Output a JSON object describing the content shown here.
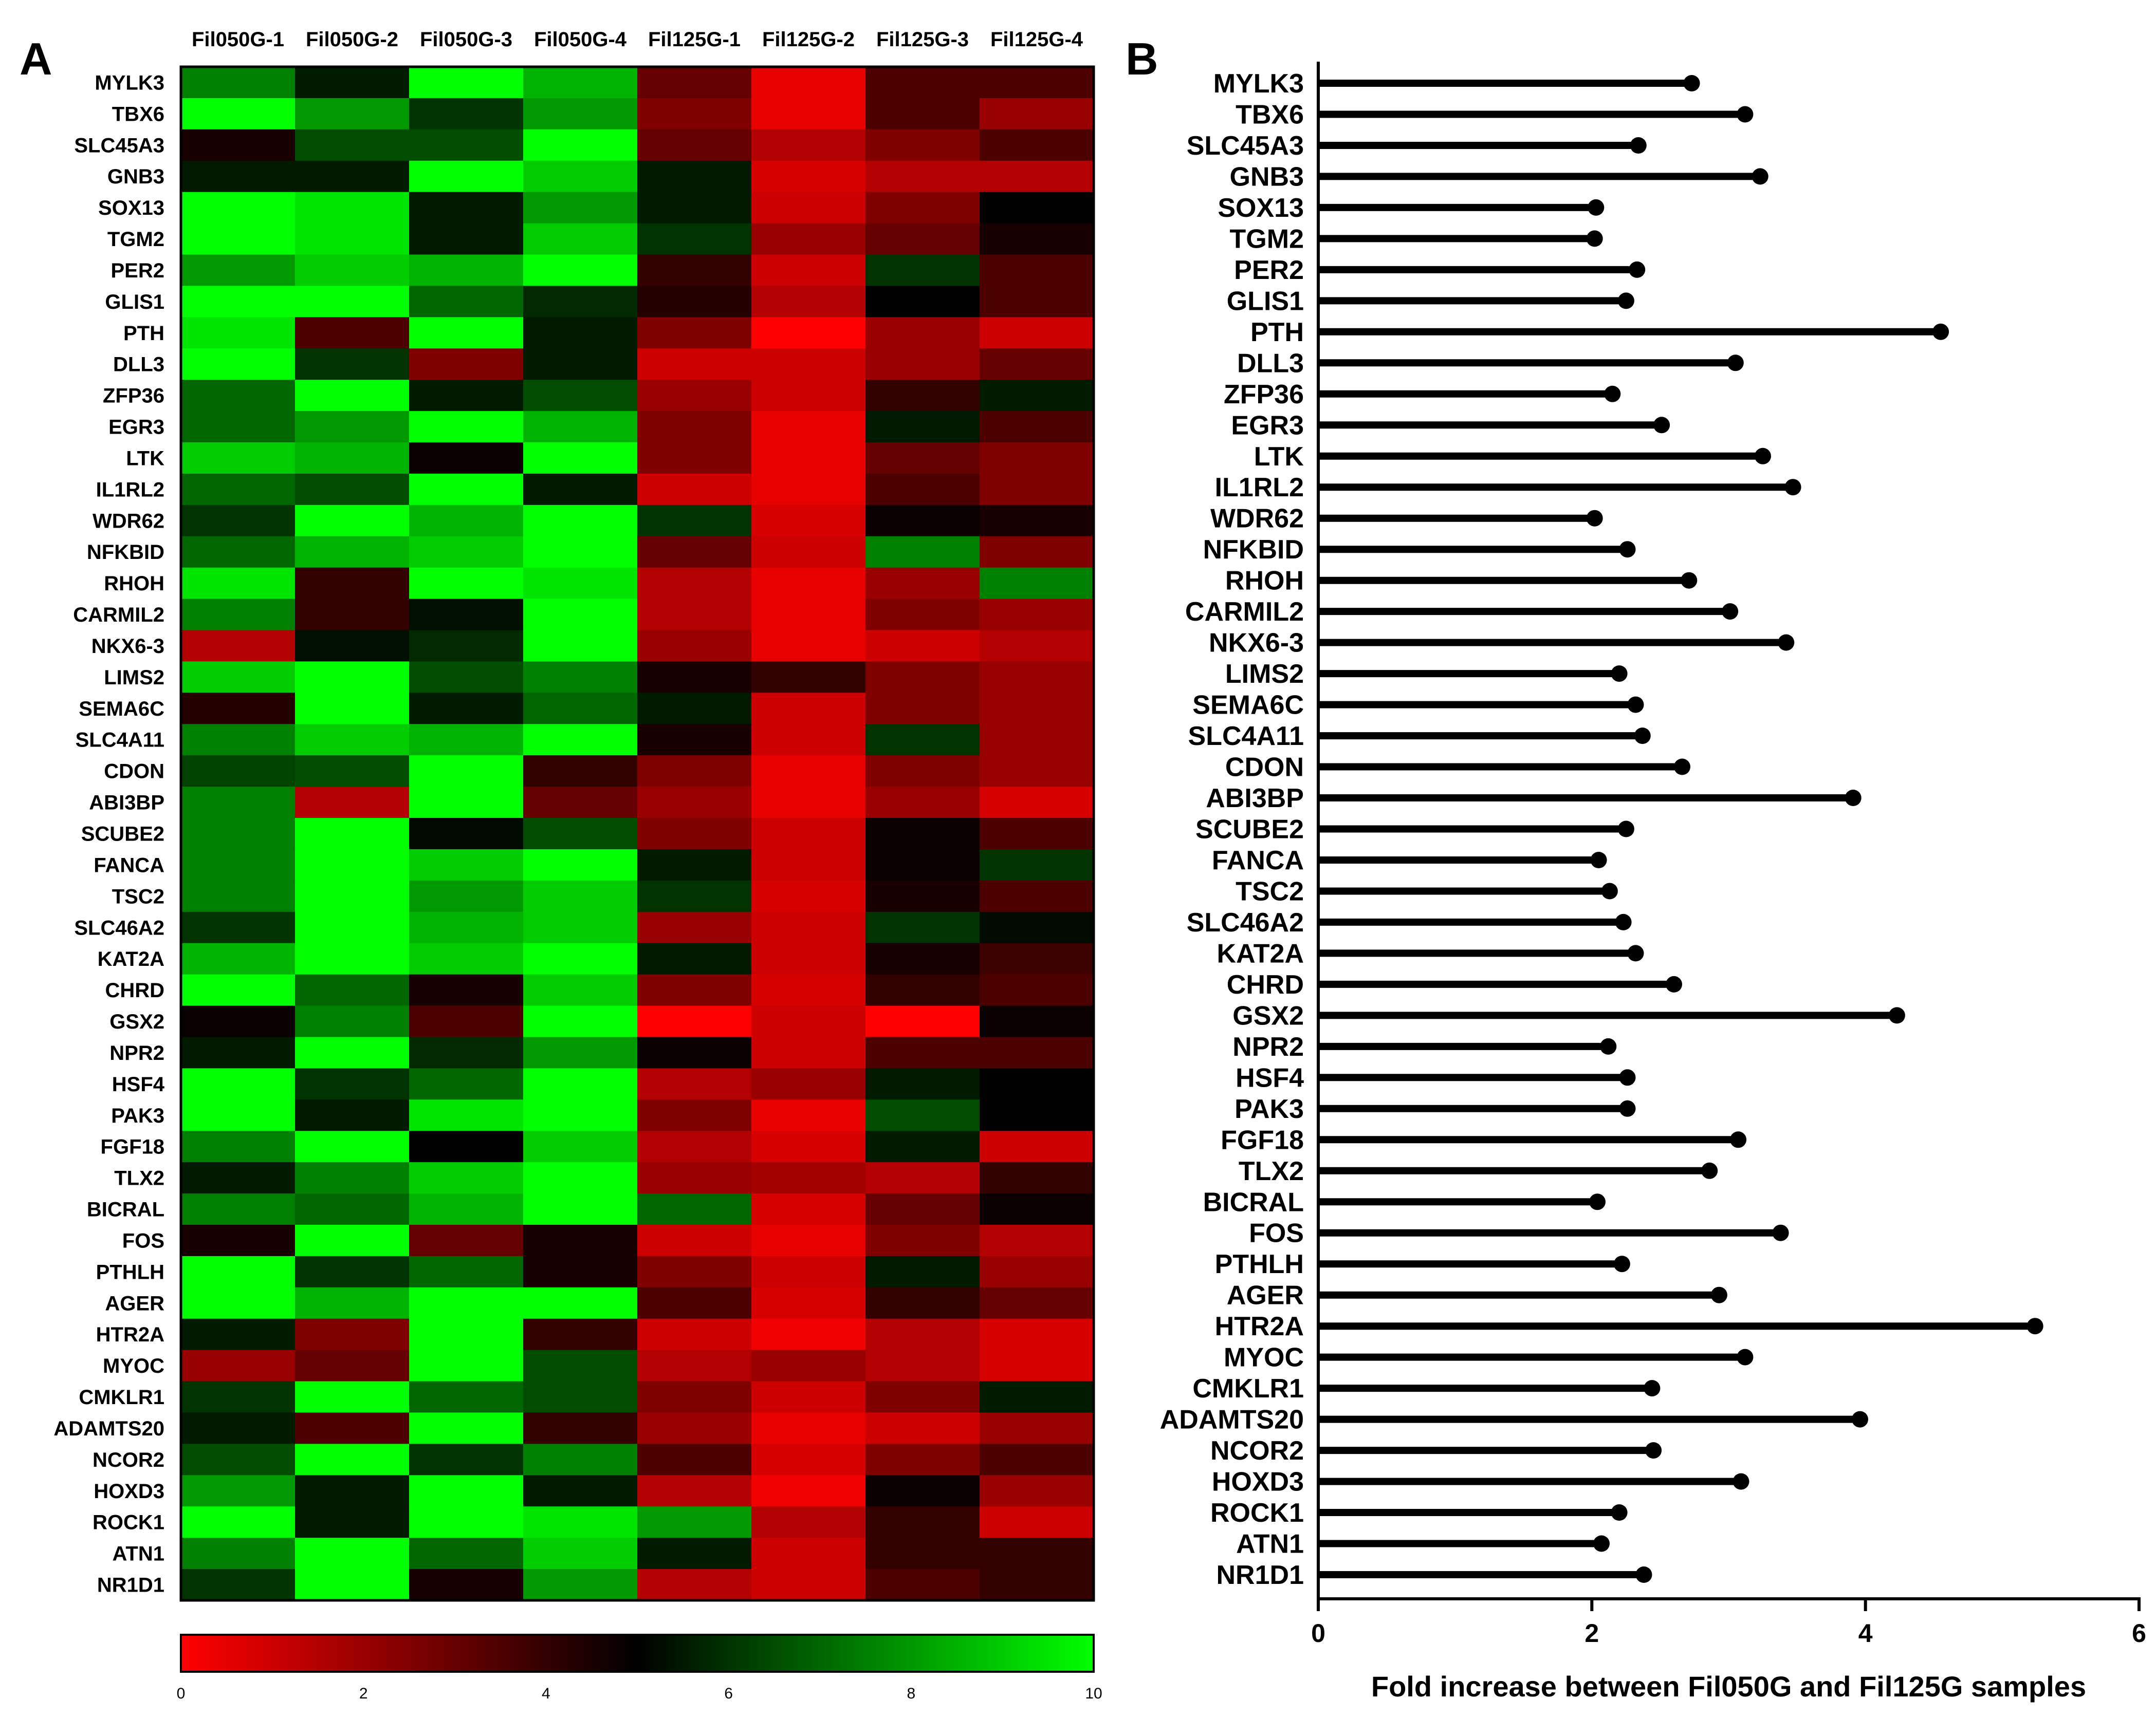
{
  "panel_a_label": "A",
  "panel_b_label": "B",
  "colors": {
    "low": "#ff0000",
    "mid": "#000000",
    "high": "#00ff00",
    "lollipop": "#000000"
  },
  "chart_data": [
    {
      "type": "heatmap",
      "panel": "A",
      "columns": [
        "Fil050G-1",
        "Fil050G-2",
        "Fil050G-3",
        "Fil050G-4",
        "Fil125G-1",
        "Fil125G-2",
        "Fil125G-3",
        "Fil125G-4"
      ],
      "rows": [
        "MYLK3",
        "TBX6",
        "SLC45A3",
        "GNB3",
        "SOX13",
        "TGM2",
        "PER2",
        "GLIS1",
        "PTH",
        "DLL3",
        "ZFP36",
        "EGR3",
        "LTK",
        "IL1RL2",
        "WDR62",
        "NFKBID",
        "RHOH",
        "CARMIL2",
        "NKX6-3",
        "LIMS2",
        "SEMA6C",
        "SLC4A11",
        "CDON",
        "ABI3BP",
        "SCUBE2",
        "FANCA",
        "TSC2",
        "SLC46A2",
        "KAT2A",
        "CHRD",
        "GSX2",
        "NPR2",
        "HSF4",
        "PAK3",
        "FGF18",
        "TLX2",
        "BICRAL",
        "FOS",
        "PTHLH",
        "AGER",
        "HTR2A",
        "MYOC",
        "CMKLR1",
        "ADAMTS20",
        "NCOR2",
        "HOXD3",
        "ROCK1",
        "ATN1",
        "NR1D1"
      ],
      "values": [
        [
          7.5,
          5.5,
          10,
          8.5,
          3,
          0.5,
          3.5,
          3.5
        ],
        [
          10,
          8,
          6,
          8,
          2.5,
          0.5,
          3.5,
          2
        ],
        [
          4.5,
          6.5,
          6.5,
          10,
          3,
          1.5,
          2.5,
          3.5
        ],
        [
          5.5,
          5.5,
          10,
          9,
          5.5,
          0.8,
          1.5,
          1.5
        ],
        [
          10,
          9.5,
          5.5,
          8,
          5.5,
          1,
          2.5,
          5
        ],
        [
          10,
          9.5,
          5.5,
          9,
          6,
          2,
          3,
          4.5
        ],
        [
          8,
          9,
          8.5,
          10,
          4,
          1,
          6,
          3.5
        ],
        [
          10,
          10,
          7,
          5.8,
          4.3,
          1.5,
          5,
          3.5
        ],
        [
          9.5,
          3.5,
          10,
          5.5,
          2.5,
          0,
          2,
          1
        ],
        [
          10,
          6,
          2.5,
          5.5,
          1,
          1,
          2,
          3
        ],
        [
          7,
          10,
          5.5,
          6.5,
          2,
          1,
          4,
          5.5
        ],
        [
          7,
          8,
          10,
          8.5,
          2.5,
          0.5,
          5.5,
          3.5
        ],
        [
          9,
          8.5,
          4.8,
          10,
          2.5,
          0.5,
          3,
          2.5
        ],
        [
          7,
          6.5,
          10,
          5.5,
          1,
          0.5,
          3.5,
          2.5
        ],
        [
          6,
          10,
          8.5,
          10,
          6,
          0.8,
          4.8,
          4.5
        ],
        [
          7,
          8.5,
          9,
          10,
          3,
          1,
          7.5,
          2.5
        ],
        [
          9.5,
          4,
          10,
          9.5,
          1.5,
          0.5,
          2,
          7.5
        ],
        [
          7.5,
          4,
          5.3,
          10,
          1.5,
          0.5,
          2.5,
          2
        ],
        [
          1.5,
          5.3,
          5.8,
          10,
          2,
          0.5,
          1,
          1.5
        ],
        [
          9,
          10,
          6.5,
          7.5,
          4.5,
          4,
          2.5,
          2
        ],
        [
          4.3,
          10,
          5.5,
          7,
          5.5,
          1,
          2.5,
          2
        ],
        [
          7.5,
          9,
          8.5,
          10,
          4.5,
          1,
          6,
          2
        ],
        [
          6.3,
          6.5,
          10,
          4,
          2.5,
          0.5,
          2.5,
          2
        ],
        [
          7.5,
          1.5,
          10,
          3,
          2,
          0.5,
          2,
          0.8
        ],
        [
          7.5,
          10,
          5.2,
          6.5,
          2.5,
          1,
          4.8,
          3.5
        ],
        [
          7.5,
          10,
          9,
          10,
          5.5,
          1,
          4.8,
          6
        ],
        [
          7.5,
          10,
          8,
          9,
          6,
          0.8,
          4.5,
          3.5
        ],
        [
          6,
          10,
          8.5,
          9,
          2,
          1,
          6,
          5.2
        ],
        [
          8.5,
          10,
          9,
          10,
          5.5,
          1,
          4.5,
          3.8
        ],
        [
          10,
          7,
          4.5,
          9,
          2.5,
          0.8,
          4,
          3.5
        ],
        [
          4.8,
          7.5,
          3.5,
          10,
          0,
          1,
          0,
          4.8
        ],
        [
          5.5,
          10,
          5.8,
          8,
          4.8,
          1,
          3.5,
          3.5
        ],
        [
          10,
          6,
          7,
          10,
          1.5,
          2,
          5.5,
          5
        ],
        [
          10,
          5.5,
          9.5,
          10,
          2.5,
          0.5,
          6.5,
          5
        ],
        [
          7.5,
          10,
          5,
          9,
          1.5,
          0.8,
          5.5,
          1
        ],
        [
          5.5,
          7.5,
          9,
          10,
          2,
          1.8,
          1.5,
          4
        ],
        [
          7.5,
          7,
          8.5,
          10,
          7,
          0.8,
          3,
          4.8
        ],
        [
          4.5,
          10,
          3,
          4.5,
          1,
          0.5,
          2.5,
          1.5
        ],
        [
          10,
          6,
          7,
          4.5,
          2.5,
          1,
          5.5,
          2
        ],
        [
          10,
          8.5,
          10,
          10,
          3.5,
          0.8,
          4,
          3
        ],
        [
          5.5,
          2.5,
          10,
          4,
          1,
          0.3,
          1.5,
          0.8
        ],
        [
          2,
          3,
          10,
          6.5,
          1.5,
          2,
          1.5,
          0.8
        ],
        [
          6,
          10,
          7,
          6.5,
          2.5,
          1,
          2.5,
          5.5
        ],
        [
          5.5,
          3.5,
          10,
          4,
          2,
          0.5,
          1,
          2
        ],
        [
          6.5,
          10,
          6,
          7.5,
          3.5,
          0.8,
          2.5,
          3.5
        ],
        [
          8,
          5.5,
          10,
          5.5,
          1.5,
          0.3,
          4.8,
          2
        ],
        [
          10,
          5.5,
          10,
          9.5,
          8,
          1.5,
          4,
          1
        ],
        [
          7.5,
          10,
          7,
          9,
          5.5,
          1,
          4,
          4
        ],
        [
          6,
          10,
          4.5,
          8,
          1.5,
          1,
          3.5,
          4
        ]
      ],
      "colorbar": {
        "min": 0,
        "max": 10,
        "ticks": [
          0,
          2,
          4,
          6,
          8,
          10
        ],
        "tick_labels": [
          "0",
          "2",
          "4",
          "6",
          "8",
          "10"
        ],
        "colors": [
          "red",
          "black",
          "green"
        ]
      }
    },
    {
      "type": "lollipop",
      "panel": "B",
      "orientation": "horizontal",
      "categories": [
        "MYLK3",
        "TBX6",
        "SLC45A3",
        "GNB3",
        "SOX13",
        "TGM2",
        "PER2",
        "GLIS1",
        "PTH",
        "DLL3",
        "ZFP36",
        "EGR3",
        "LTK",
        "IL1RL2",
        "WDR62",
        "NFKBID",
        "RHOH",
        "CARMIL2",
        "NKX6-3",
        "LIMS2",
        "SEMA6C",
        "SLC4A11",
        "CDON",
        "ABI3BP",
        "SCUBE2",
        "FANCA",
        "TSC2",
        "SLC46A2",
        "KAT2A",
        "CHRD",
        "GSX2",
        "NPR2",
        "HSF4",
        "PAK3",
        "FGF18",
        "TLX2",
        "BICRAL",
        "FOS",
        "PTHLH",
        "AGER",
        "HTR2A",
        "MYOC",
        "CMKLR1",
        "ADAMTS20",
        "NCOR2",
        "HOXD3",
        "ROCK1",
        "ATN1",
        "NR1D1"
      ],
      "values": [
        2.73,
        3.12,
        2.34,
        3.23,
        2.03,
        2.02,
        2.33,
        2.25,
        4.55,
        3.05,
        2.15,
        2.51,
        3.25,
        3.47,
        2.02,
        2.26,
        2.71,
        3.01,
        3.42,
        2.2,
        2.32,
        2.37,
        2.66,
        3.91,
        2.25,
        2.05,
        2.13,
        2.23,
        2.32,
        2.6,
        4.23,
        2.12,
        2.26,
        2.26,
        3.07,
        2.86,
        2.04,
        3.38,
        2.22,
        2.93,
        5.24,
        3.12,
        2.44,
        3.96,
        2.45,
        3.09,
        2.2,
        2.07,
        2.38
      ],
      "xlabel": "Fold increase between Fil050G and Fil125G samples",
      "xlim": [
        0,
        6
      ],
      "xticks": [
        0,
        2,
        4,
        6
      ],
      "xtick_labels": [
        "0",
        "2",
        "4",
        "6"
      ]
    }
  ]
}
